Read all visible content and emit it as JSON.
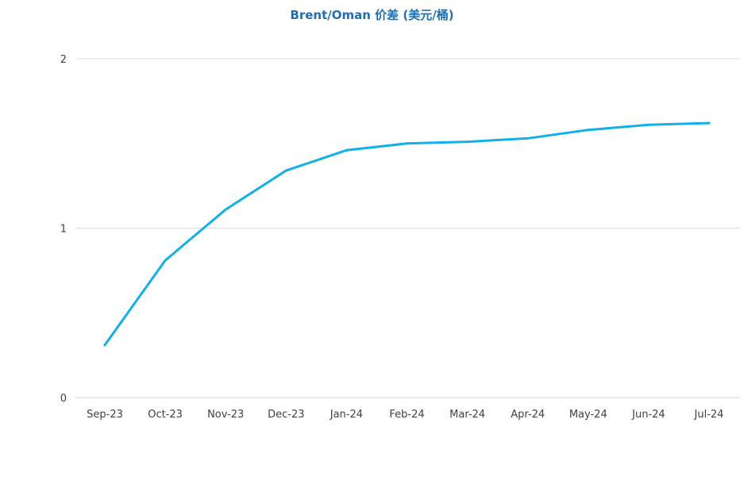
{
  "chart_data": {
    "type": "line",
    "title": "Brent/Oman 价差 (美元/桶)",
    "xlabel": "",
    "ylabel": "",
    "categories": [
      "Sep-23",
      "Oct-23",
      "Nov-23",
      "Dec-23",
      "Jan-24",
      "Feb-24",
      "Mar-24",
      "Apr-24",
      "May-24",
      "Jun-24",
      "Jul-24"
    ],
    "series": [
      {
        "values": [
          0.31,
          0.81,
          1.11,
          1.34,
          1.46,
          1.5,
          1.51,
          1.53,
          1.58,
          1.61,
          1.62
        ]
      }
    ],
    "ylim": [
      0,
      2
    ],
    "yticks": [
      0,
      1,
      2
    ],
    "grid": true,
    "line_color": "#12b0e8"
  }
}
